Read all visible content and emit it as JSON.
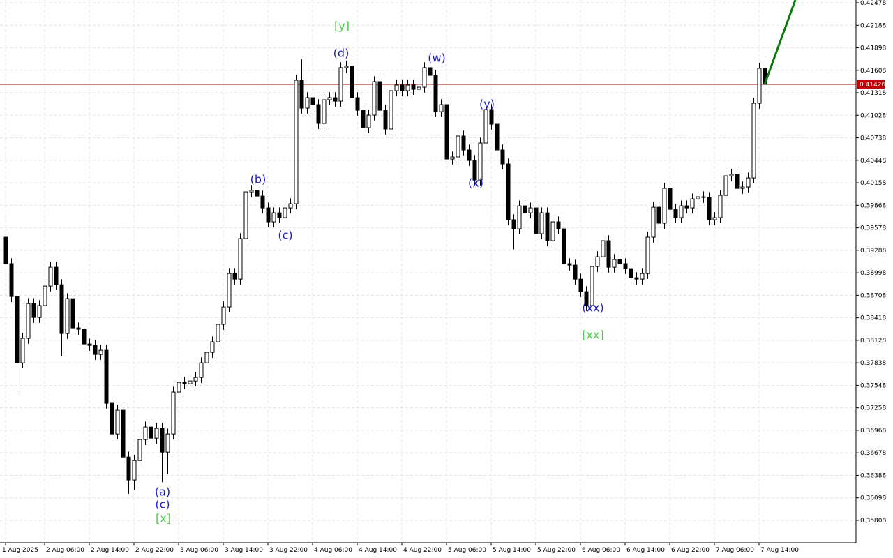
{
  "chart_data": {
    "type": "candlestick",
    "categories": [
      "1 Aug 2025",
      null,
      null,
      null,
      null,
      null,
      null,
      "2 Aug 06:00",
      null,
      null,
      null,
      null,
      null,
      null,
      null,
      "2 Aug 14:00",
      null,
      null,
      null,
      null,
      null,
      null,
      null,
      "2 Aug 22:00",
      null,
      null,
      null,
      null,
      null,
      null,
      null,
      "3 Aug 06:00",
      null,
      null,
      null,
      null,
      null,
      null,
      null,
      "3 Aug 14:00",
      null,
      null,
      null,
      null,
      null,
      null,
      null,
      "3 Aug 22:00",
      null,
      null,
      null,
      null,
      null,
      null,
      null,
      "4 Aug 06:00",
      null,
      null,
      null,
      null,
      null,
      null,
      null,
      "4 Aug 14:00",
      null,
      null,
      null,
      null,
      null,
      null,
      null,
      "4 Aug 22:00",
      null,
      null,
      null,
      null,
      null,
      null,
      null,
      "5 Aug 06:00",
      null,
      null,
      null,
      null,
      null,
      null,
      null,
      "5 Aug 14:00",
      null,
      null,
      null,
      null,
      null,
      null,
      null,
      "5 Aug 22:00",
      null,
      null,
      null,
      null,
      null,
      null,
      null,
      "6 Aug 06:00",
      null,
      null,
      null,
      null,
      null,
      null,
      null,
      "6 Aug 14:00",
      null,
      null,
      null,
      null,
      null,
      null,
      null,
      "6 Aug 22:00",
      null,
      null,
      null,
      null,
      null,
      null,
      null,
      "7 Aug 06:00",
      null,
      null,
      null,
      null,
      null,
      null,
      null,
      "7 Aug 14:00",
      null
    ],
    "open": [
      0.39457,
      0.39115,
      0.38692,
      0.37838,
      0.38153,
      0.38602,
      0.38423,
      0.38576,
      0.38827,
      0.3907,
      0.38845,
      0.38216,
      0.38665,
      0.38288,
      0.3827,
      0.38081,
      0.38063,
      0.37946,
      0.38,
      0.37317,
      0.36921,
      0.37227,
      0.36624,
      0.36328,
      0.36579,
      0.36849,
      0.37011,
      0.36867,
      0.36993,
      0.36687,
      0.36921,
      0.37461,
      0.37586,
      0.37568,
      0.37604,
      0.37649,
      0.37838,
      0.37973,
      0.38108,
      0.38333,
      0.38558,
      0.38989,
      0.38917,
      0.39439,
      0.40041,
      0.4006,
      0.39987,
      0.39834,
      0.39655,
      0.39771,
      0.39709,
      0.39834,
      0.39888,
      0.4148,
      0.4112,
      0.41255,
      0.41165,
      0.40922,
      0.41228,
      0.41255,
      0.4121,
      0.41642,
      0.4166,
      0.41255,
      0.41093,
      0.40869,
      0.4103,
      0.41462,
      0.41093,
      0.40851,
      0.41345,
      0.41417,
      0.41345,
      0.41417,
      0.41363,
      0.4139,
      0.41642,
      0.41543,
      0.41075,
      0.41165,
      0.40464,
      0.40491,
      0.40761,
      0.40581,
      0.40446,
      0.40194,
      0.40671,
      0.41102,
      0.40913,
      0.40581,
      0.40401,
      0.39682,
      0.39565,
      0.39861,
      0.39771,
      0.39834,
      0.39502,
      0.39771,
      0.39412,
      0.39655,
      0.39565,
      0.39115,
      0.39097,
      0.38917,
      0.38755,
      0.38576,
      0.39079,
      0.39205,
      0.39412,
      0.3907,
      0.39169,
      0.39115,
      0.39052,
      0.38935,
      0.38917,
      0.38989,
      0.39457,
      0.39843,
      0.39637,
      0.40086,
      0.39816,
      0.39709,
      0.39861,
      0.39834,
      0.39951,
      0.39978,
      0.39969,
      0.39682,
      0.39709,
      0.39996,
      0.40248,
      0.40266,
      0.40086,
      0.40104,
      0.40221,
      0.41183,
      0.41633
    ],
    "high": [
      0.39527,
      0.39185,
      0.38762,
      0.38223,
      0.38672,
      0.38672,
      0.38646,
      0.38897,
      0.3914,
      0.3914,
      0.38915,
      0.38735,
      0.38735,
      0.38358,
      0.3834,
      0.38151,
      0.38133,
      0.3807,
      0.3807,
      0.37387,
      0.37297,
      0.37297,
      0.36694,
      0.36649,
      0.36919,
      0.37081,
      0.37081,
      0.37063,
      0.37063,
      0.36991,
      0.37531,
      0.37656,
      0.37656,
      0.37674,
      0.37719,
      0.37908,
      0.38043,
      0.38178,
      0.38403,
      0.38628,
      0.39059,
      0.39059,
      0.39509,
      0.40111,
      0.4013,
      0.4013,
      0.40057,
      0.39904,
      0.39841,
      0.39841,
      0.39904,
      0.39958,
      0.4155,
      0.4175,
      0.41325,
      0.41325,
      0.41235,
      0.41298,
      0.41325,
      0.41325,
      0.41712,
      0.4173,
      0.4173,
      0.41325,
      0.41163,
      0.411,
      0.41532,
      0.41532,
      0.41163,
      0.41415,
      0.41487,
      0.41487,
      0.41487,
      0.41487,
      0.4146,
      0.41712,
      0.41712,
      0.41613,
      0.41235,
      0.41235,
      0.40561,
      0.40831,
      0.40831,
      0.40651,
      0.40516,
      0.40741,
      0.41172,
      0.41172,
      0.40983,
      0.40651,
      0.40471,
      0.39752,
      0.39931,
      0.39931,
      0.39904,
      0.39904,
      0.39841,
      0.39841,
      0.39725,
      0.39725,
      0.39635,
      0.39185,
      0.39167,
      0.38987,
      0.38825,
      0.39149,
      0.39275,
      0.39482,
      0.39482,
      0.39239,
      0.39239,
      0.39185,
      0.39122,
      0.39005,
      0.39059,
      0.39527,
      0.39913,
      0.39913,
      0.40156,
      0.40156,
      0.39886,
      0.39931,
      0.39931,
      0.40021,
      0.40048,
      0.40048,
      0.40039,
      0.39779,
      0.40066,
      0.40318,
      0.40336,
      0.40336,
      0.40174,
      0.40291,
      0.41253,
      0.41703,
      0.4179
    ],
    "low": [
      0.39045,
      0.38622,
      0.3746,
      0.37768,
      0.38083,
      0.38353,
      0.38353,
      0.38506,
      0.38757,
      0.38775,
      0.3792,
      0.38146,
      0.38218,
      0.382,
      0.38011,
      0.37993,
      0.37876,
      0.37876,
      0.37247,
      0.36851,
      0.36851,
      0.36554,
      0.3615,
      0.362,
      0.36509,
      0.36779,
      0.36797,
      0.36797,
      0.363,
      0.364,
      0.36851,
      0.37391,
      0.37498,
      0.37498,
      0.37534,
      0.37579,
      0.37768,
      0.37903,
      0.38038,
      0.38263,
      0.38488,
      0.38847,
      0.38847,
      0.39369,
      0.39971,
      0.39917,
      0.39764,
      0.39585,
      0.39585,
      0.39639,
      0.39639,
      0.39764,
      0.39818,
      0.4105,
      0.4105,
      0.41095,
      0.40852,
      0.40852,
      0.41158,
      0.4114,
      0.4114,
      0.41572,
      0.41185,
      0.41023,
      0.40799,
      0.40799,
      0.4096,
      0.41023,
      0.40781,
      0.40781,
      0.41275,
      0.41275,
      0.41275,
      0.41293,
      0.41293,
      0.4132,
      0.41473,
      0.41005,
      0.41005,
      0.40394,
      0.40394,
      0.40421,
      0.40511,
      0.40376,
      0.40124,
      0.40124,
      0.40601,
      0.40843,
      0.40511,
      0.40331,
      0.39612,
      0.393,
      0.39495,
      0.39701,
      0.39701,
      0.39432,
      0.39432,
      0.39342,
      0.39342,
      0.39495,
      0.39045,
      0.39027,
      0.38847,
      0.38685,
      0.38506,
      0.38506,
      0.39009,
      0.39135,
      0.39,
      0.39,
      0.39045,
      0.38982,
      0.38865,
      0.38847,
      0.38847,
      0.38919,
      0.39387,
      0.39567,
      0.39567,
      0.39746,
      0.39639,
      0.39639,
      0.39764,
      0.39764,
      0.39881,
      0.39899,
      0.39612,
      0.39612,
      0.39639,
      0.39926,
      0.40178,
      0.40016,
      0.40016,
      0.40034,
      0.40151,
      0.41113,
      0.41356
    ],
    "close": [
      0.39115,
      0.38692,
      0.37838,
      0.38153,
      0.38602,
      0.38423,
      0.38576,
      0.38827,
      0.3907,
      0.38845,
      0.38216,
      0.38665,
      0.38288,
      0.3827,
      0.38081,
      0.38063,
      0.37946,
      0.38,
      0.37317,
      0.36921,
      0.37227,
      0.36624,
      0.36328,
      0.36579,
      0.36849,
      0.37011,
      0.36867,
      0.36993,
      0.36687,
      0.36921,
      0.37461,
      0.37586,
      0.37568,
      0.37604,
      0.37649,
      0.37838,
      0.37973,
      0.38108,
      0.38333,
      0.38558,
      0.38989,
      0.38917,
      0.39439,
      0.40041,
      0.4006,
      0.39987,
      0.39834,
      0.39655,
      0.39771,
      0.39709,
      0.39834,
      0.39888,
      0.4148,
      0.4112,
      0.41255,
      0.41165,
      0.40922,
      0.41228,
      0.41255,
      0.4121,
      0.41642,
      0.4166,
      0.41255,
      0.41093,
      0.40869,
      0.4103,
      0.41462,
      0.41093,
      0.40851,
      0.41345,
      0.41417,
      0.41345,
      0.41417,
      0.41363,
      0.4139,
      0.41642,
      0.41543,
      0.41075,
      0.41165,
      0.40464,
      0.40491,
      0.40761,
      0.40581,
      0.40446,
      0.40194,
      0.40671,
      0.41102,
      0.40913,
      0.40581,
      0.40401,
      0.39682,
      0.39565,
      0.39861,
      0.39771,
      0.39834,
      0.39502,
      0.39771,
      0.39412,
      0.39655,
      0.39565,
      0.39115,
      0.39097,
      0.38917,
      0.38755,
      0.38576,
      0.39079,
      0.39205,
      0.39412,
      0.3907,
      0.39169,
      0.39115,
      0.39052,
      0.38935,
      0.38917,
      0.38989,
      0.39457,
      0.39843,
      0.39637,
      0.40086,
      0.39816,
      0.39709,
      0.39861,
      0.39834,
      0.39951,
      0.39978,
      0.39969,
      0.39682,
      0.39709,
      0.39996,
      0.40248,
      0.40266,
      0.40086,
      0.40104,
      0.40221,
      0.41183,
      0.41633,
      0.41426
    ],
    "ylim": [
      0.3552,
      0.42514
    ],
    "yticks": [
      0.42478,
      0.42188,
      0.41898,
      0.41608,
      0.41318,
      0.41028,
      0.40738,
      0.40448,
      0.40158,
      0.39868,
      0.39578,
      0.39288,
      0.38998,
      0.38708,
      0.38418,
      0.38128,
      0.37838,
      0.37548,
      0.37258,
      0.36968,
      0.36678,
      0.36388,
      0.36098,
      0.35808
    ],
    "grid": true,
    "current_price": 0.41426,
    "current_price_color": "#c00000",
    "projection_color": "#0a7a0a",
    "annotations": [
      {
        "text": "(a)",
        "color": "#1a1acc"
      },
      {
        "text": "(c)",
        "color": "#1a1acc"
      },
      {
        "text": "[x]",
        "color": "#4ccc4c"
      },
      {
        "text": "(b)",
        "color": "#1a1acc"
      },
      {
        "text": "(c)",
        "color": "#1a1acc"
      },
      {
        "text": "(d)",
        "color": "#1a1acc"
      },
      {
        "text": "[y]",
        "color": "#4ccc4c"
      },
      {
        "text": "(w)",
        "color": "#1a1acc"
      },
      {
        "text": "(x)",
        "color": "#1a1acc"
      },
      {
        "text": "(y)",
        "color": "#1a1acc"
      },
      {
        "text": "(xx)",
        "color": "#1a1acc"
      },
      {
        "text": "[xx]",
        "color": "#4ccc4c"
      }
    ]
  }
}
